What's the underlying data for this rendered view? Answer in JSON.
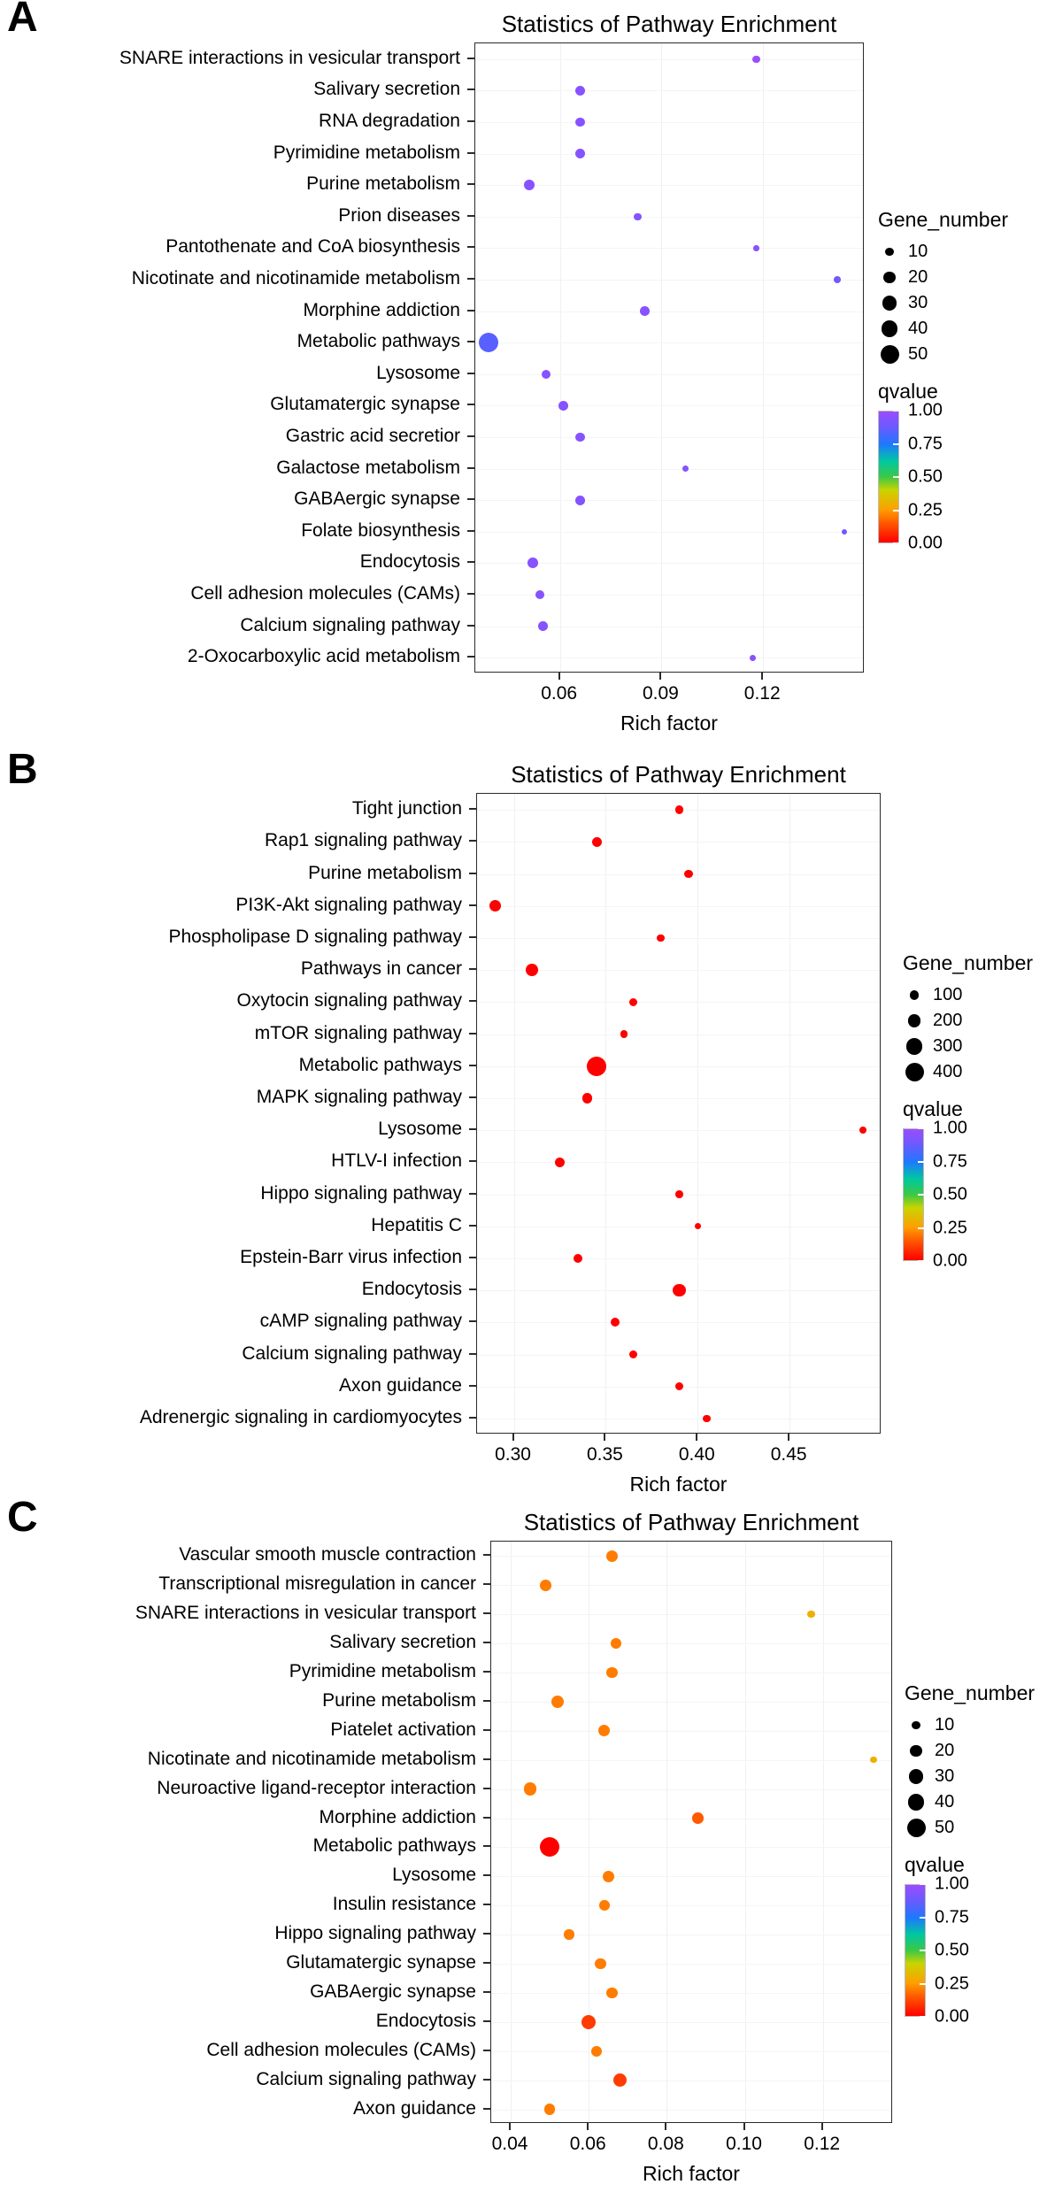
{
  "qvalue_gradient": [
    {
      "q": 0.0,
      "color": "#ff0000"
    },
    {
      "q": 0.15,
      "color": "#ff5a00"
    },
    {
      "q": 0.25,
      "color": "#ff9e00"
    },
    {
      "q": 0.4,
      "color": "#c8d400"
    },
    {
      "q": 0.5,
      "color": "#3cc846"
    },
    {
      "q": 0.62,
      "color": "#00c8a0"
    },
    {
      "q": 0.75,
      "color": "#1e78ff"
    },
    {
      "q": 0.88,
      "color": "#6a5aff"
    },
    {
      "q": 1.0,
      "color": "#9b4dff"
    }
  ],
  "chart_data": [
    {
      "type": "scatter",
      "panel_label": "A",
      "title": "Statistics of Pathway Enrichment",
      "xlabel": "Rich factor",
      "xlim": [
        0.035,
        0.15
      ],
      "x_ticks": [
        0.06,
        0.09,
        0.12
      ],
      "x_tick_labels": [
        "0.06",
        "0.09",
        "0.12"
      ],
      "size_legend": {
        "title": "Gene_number",
        "values": [
          10,
          20,
          30,
          40,
          50
        ]
      },
      "color_legend": {
        "title": "qvalue",
        "tick_labels": [
          "1.00",
          "0.75",
          "0.50",
          "0.25",
          "0.00"
        ],
        "tick_values": [
          1.0,
          0.75,
          0.5,
          0.25,
          0.0
        ]
      },
      "points": [
        {
          "pathway": "SNARE interactions in vesicular transport",
          "rich_factor": 0.118,
          "gene_number": 8,
          "qvalue": 1.0
        },
        {
          "pathway": "Salivary secretion",
          "rich_factor": 0.066,
          "gene_number": 14,
          "qvalue": 0.95
        },
        {
          "pathway": "RNA degradation",
          "rich_factor": 0.066,
          "gene_number": 13,
          "qvalue": 0.95
        },
        {
          "pathway": "Pyrimidine metabolism",
          "rich_factor": 0.066,
          "gene_number": 14,
          "qvalue": 0.95
        },
        {
          "pathway": "Purine metabolism",
          "rich_factor": 0.051,
          "gene_number": 17,
          "qvalue": 0.95
        },
        {
          "pathway": "Prion diseases",
          "rich_factor": 0.083,
          "gene_number": 8,
          "qvalue": 0.95
        },
        {
          "pathway": "Pantothenate and CoA biosynthesis",
          "rich_factor": 0.118,
          "gene_number": 5,
          "qvalue": 0.95
        },
        {
          "pathway": "Nicotinate and nicotinamide metabolism",
          "rich_factor": 0.142,
          "gene_number": 7,
          "qvalue": 0.9
        },
        {
          "pathway": "Morphine addiction",
          "rich_factor": 0.085,
          "gene_number": 13,
          "qvalue": 0.95
        },
        {
          "pathway": "Metabolic pathways",
          "rich_factor": 0.039,
          "gene_number": 55,
          "qvalue": 0.85
        },
        {
          "pathway": "Lysosome",
          "rich_factor": 0.056,
          "gene_number": 12,
          "qvalue": 0.95
        },
        {
          "pathway": "Glutamatergic synapse",
          "rich_factor": 0.061,
          "gene_number": 13,
          "qvalue": 0.95
        },
        {
          "pathway": "Gastric acid secretior",
          "rich_factor": 0.066,
          "gene_number": 12,
          "qvalue": 0.95
        },
        {
          "pathway": "Galactose metabolism",
          "rich_factor": 0.097,
          "gene_number": 6,
          "qvalue": 0.95
        },
        {
          "pathway": "GABAergic synapse",
          "rich_factor": 0.066,
          "gene_number": 13,
          "qvalue": 0.95
        },
        {
          "pathway": "Folate biosynthesis",
          "rich_factor": 0.144,
          "gene_number": 4,
          "qvalue": 0.9
        },
        {
          "pathway": "Endocytosis",
          "rich_factor": 0.052,
          "gene_number": 16,
          "qvalue": 0.95
        },
        {
          "pathway": "Cell adhesion molecules (CAMs)",
          "rich_factor": 0.054,
          "gene_number": 11,
          "qvalue": 0.95
        },
        {
          "pathway": "Calcium signaling pathway",
          "rich_factor": 0.055,
          "gene_number": 13,
          "qvalue": 0.95
        },
        {
          "pathway": "2-Oxocarboxylic acid metabolism",
          "rich_factor": 0.117,
          "gene_number": 6,
          "qvalue": 0.95
        }
      ]
    },
    {
      "type": "scatter",
      "panel_label": "B",
      "title": "Statistics of Pathway Enrichment",
      "xlabel": "Rich factor",
      "xlim": [
        0.28,
        0.5
      ],
      "x_ticks": [
        0.3,
        0.35,
        0.4,
        0.45
      ],
      "x_tick_labels": [
        "0.30",
        "0.35",
        "0.40",
        "0.45"
      ],
      "size_legend": {
        "title": "Gene_number",
        "values": [
          100,
          200,
          300,
          400
        ]
      },
      "color_legend": {
        "title": "qvalue",
        "tick_labels": [
          "1.00",
          "0.75",
          "0.50",
          "0.25",
          "0.00"
        ],
        "tick_values": [
          1.0,
          0.75,
          0.5,
          0.25,
          0.0
        ]
      },
      "points": [
        {
          "pathway": "Tight junction",
          "rich_factor": 0.39,
          "gene_number": 80,
          "qvalue": 0.0
        },
        {
          "pathway": "Rap1 signaling pathway",
          "rich_factor": 0.345,
          "gene_number": 110,
          "qvalue": 0.0
        },
        {
          "pathway": "Purine metabolism",
          "rich_factor": 0.395,
          "gene_number": 90,
          "qvalue": 0.0
        },
        {
          "pathway": "PI3K-Akt signaling pathway",
          "rich_factor": 0.29,
          "gene_number": 160,
          "qvalue": 0.0
        },
        {
          "pathway": "Phospholipase D signaling pathway",
          "rich_factor": 0.38,
          "gene_number": 70,
          "qvalue": 0.0
        },
        {
          "pathway": "Pathways in cancer",
          "rich_factor": 0.31,
          "gene_number": 170,
          "qvalue": 0.0
        },
        {
          "pathway": "Oxytocin signaling pathway",
          "rich_factor": 0.365,
          "gene_number": 80,
          "qvalue": 0.0
        },
        {
          "pathway": "mTOR signaling pathway",
          "rich_factor": 0.36,
          "gene_number": 60,
          "qvalue": 0.0
        },
        {
          "pathway": "Metabolic pathways",
          "rich_factor": 0.345,
          "gene_number": 430,
          "qvalue": 0.0
        },
        {
          "pathway": "MAPK signaling pathway",
          "rich_factor": 0.34,
          "gene_number": 120,
          "qvalue": 0.0
        },
        {
          "pathway": "Lysosome",
          "rich_factor": 0.49,
          "gene_number": 60,
          "qvalue": 0.0
        },
        {
          "pathway": "HTLV-I infection",
          "rich_factor": 0.325,
          "gene_number": 110,
          "qvalue": 0.0
        },
        {
          "pathway": "Hippo signaling pathway",
          "rich_factor": 0.39,
          "gene_number": 70,
          "qvalue": 0.0
        },
        {
          "pathway": "Hepatitis C",
          "rich_factor": 0.4,
          "gene_number": 50,
          "qvalue": 0.0
        },
        {
          "pathway": "Epstein-Barr virus infection",
          "rich_factor": 0.335,
          "gene_number": 90,
          "qvalue": 0.0
        },
        {
          "pathway": "Endocytosis",
          "rich_factor": 0.39,
          "gene_number": 180,
          "qvalue": 0.0
        },
        {
          "pathway": "cAMP signaling pathway",
          "rich_factor": 0.355,
          "gene_number": 90,
          "qvalue": 0.0
        },
        {
          "pathway": "Calcium signaling pathway",
          "rich_factor": 0.365,
          "gene_number": 80,
          "qvalue": 0.0
        },
        {
          "pathway": "Axon guidance",
          "rich_factor": 0.39,
          "gene_number": 80,
          "qvalue": 0.0
        },
        {
          "pathway": "Adrenergic signaling in cardiomyocytes",
          "rich_factor": 0.405,
          "gene_number": 70,
          "qvalue": 0.0
        }
      ]
    },
    {
      "type": "scatter",
      "panel_label": "C",
      "title": "Statistics of Pathway Enrichment",
      "xlabel": "Rich factor",
      "xlim": [
        0.035,
        0.138
      ],
      "x_ticks": [
        0.04,
        0.06,
        0.08,
        0.1,
        0.12
      ],
      "x_tick_labels": [
        "0.04",
        "0.06",
        "0.08",
        "0.10",
        "0.12"
      ],
      "size_legend": {
        "title": "Gene_number",
        "values": [
          10,
          20,
          30,
          40,
          50
        ]
      },
      "color_legend": {
        "title": "qvalue",
        "tick_labels": [
          "1.00",
          "0.75",
          "0.50",
          "0.25",
          "0.00"
        ],
        "tick_values": [
          1.0,
          0.75,
          0.5,
          0.25,
          0.0
        ]
      },
      "points": [
        {
          "pathway": "Vascular smooth muscle contraction",
          "rich_factor": 0.066,
          "gene_number": 20,
          "qvalue": 0.2
        },
        {
          "pathway": "Transcriptional misregulation in cancer",
          "rich_factor": 0.049,
          "gene_number": 18,
          "qvalue": 0.2
        },
        {
          "pathway": "SNARE interactions in vesicular transport",
          "rich_factor": 0.117,
          "gene_number": 8,
          "qvalue": 0.3
        },
        {
          "pathway": "Salivary secretion",
          "rich_factor": 0.067,
          "gene_number": 17,
          "qvalue": 0.2
        },
        {
          "pathway": "Pyrimidine metabolism",
          "rich_factor": 0.066,
          "gene_number": 18,
          "qvalue": 0.2
        },
        {
          "pathway": "Purine metabolism",
          "rich_factor": 0.052,
          "gene_number": 22,
          "qvalue": 0.2
        },
        {
          "pathway": "Piatelet activation",
          "rich_factor": 0.064,
          "gene_number": 20,
          "qvalue": 0.2
        },
        {
          "pathway": "Nicotinate and nicotinamide metabolism",
          "rich_factor": 0.133,
          "gene_number": 6,
          "qvalue": 0.3
        },
        {
          "pathway": "Neuroactive ligand-receptor interaction",
          "rich_factor": 0.045,
          "gene_number": 25,
          "qvalue": 0.2
        },
        {
          "pathway": "Morphine addiction",
          "rich_factor": 0.088,
          "gene_number": 18,
          "qvalue": 0.15
        },
        {
          "pathway": "Metabolic pathways",
          "rich_factor": 0.05,
          "gene_number": 55,
          "qvalue": 0.0
        },
        {
          "pathway": "Lysosome",
          "rich_factor": 0.065,
          "gene_number": 20,
          "qvalue": 0.2
        },
        {
          "pathway": "Insulin resistance",
          "rich_factor": 0.064,
          "gene_number": 16,
          "qvalue": 0.2
        },
        {
          "pathway": "Hippo signaling pathway",
          "rich_factor": 0.055,
          "gene_number": 15,
          "qvalue": 0.2
        },
        {
          "pathway": "Glutamatergic synapse",
          "rich_factor": 0.063,
          "gene_number": 17,
          "qvalue": 0.2
        },
        {
          "pathway": "GABAergic synapse",
          "rich_factor": 0.066,
          "gene_number": 18,
          "qvalue": 0.2
        },
        {
          "pathway": "Endocytosis",
          "rich_factor": 0.06,
          "gene_number": 30,
          "qvalue": 0.1
        },
        {
          "pathway": "Cell adhesion molecules (CAMs)",
          "rich_factor": 0.062,
          "gene_number": 17,
          "qvalue": 0.2
        },
        {
          "pathway": "Calcium signaling pathway",
          "rich_factor": 0.068,
          "gene_number": 28,
          "qvalue": 0.1
        },
        {
          "pathway": "Axon guidance",
          "rich_factor": 0.05,
          "gene_number": 18,
          "qvalue": 0.2
        }
      ]
    }
  ]
}
